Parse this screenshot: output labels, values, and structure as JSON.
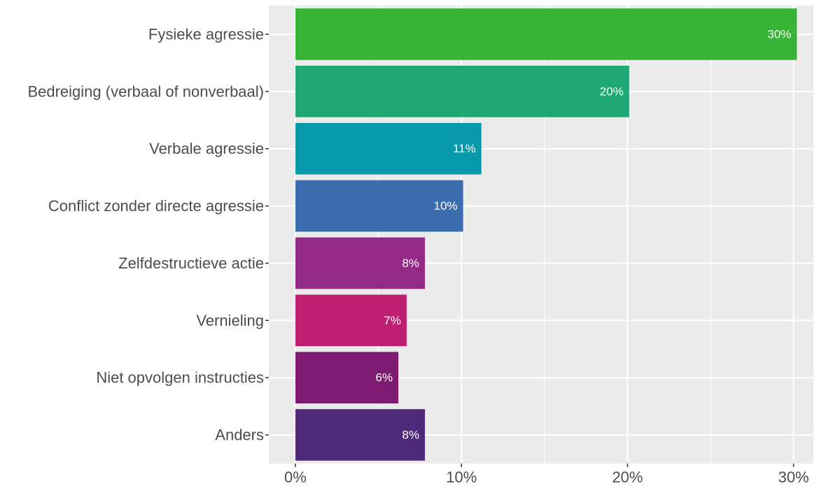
{
  "chart_data": {
    "type": "bar",
    "orientation": "horizontal",
    "categories": [
      "Fysieke agressie",
      "Bedreiging (verbaal of nonverbaal)",
      "Verbale agressie",
      "Conflict zonder directe agressie",
      "Zelfdestructieve actie",
      "Vernieling",
      "Niet opvolgen instructies",
      "Anders"
    ],
    "values": [
      30.2,
      20.1,
      11.2,
      10.1,
      7.8,
      6.7,
      6.2,
      7.8
    ],
    "data_labels": [
      "30%",
      "20%",
      "11%",
      "10%",
      "8%",
      "7%",
      "6%",
      "8%"
    ],
    "colors": [
      "#37b435",
      "#1fa774",
      "#0899ab",
      "#3a6cae",
      "#932a86",
      "#bf1f70",
      "#7f1a72",
      "#4f2a7b"
    ],
    "x_ticks": [
      0,
      10,
      20,
      30
    ],
    "x_tick_labels": [
      "0%",
      "10%",
      "20%",
      "30%"
    ],
    "xlim": [
      -1.6,
      31.2
    ],
    "grid": true,
    "panel_background": "#ebebeb",
    "gridline_color": "#ffffff",
    "title": "",
    "xlabel": "",
    "ylabel": ""
  }
}
